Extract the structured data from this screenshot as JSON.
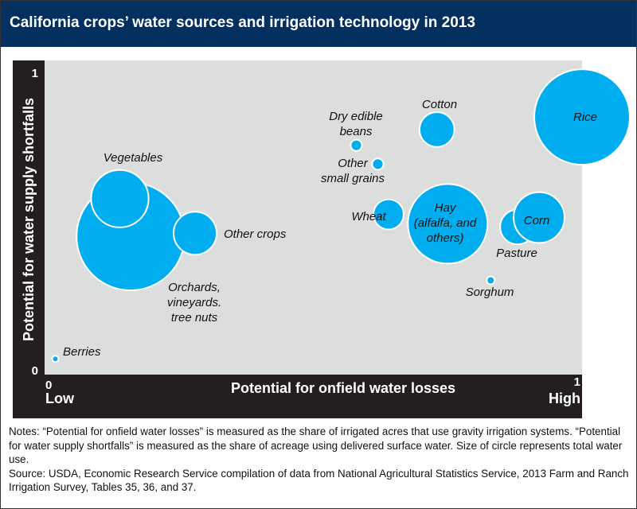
{
  "header": {
    "title": "California crops’ water sources and irrigation technology in 2013"
  },
  "chart_data": {
    "type": "scatter",
    "title": "California crops’ water sources and irrigation technology in 2013",
    "xlabel": "Potential for onfield water losses",
    "ylabel": "Potential for water supply shortfalls",
    "xlim": [
      0,
      1
    ],
    "ylim": [
      0,
      1
    ],
    "x_ticks": [
      "0",
      "1"
    ],
    "y_ticks": [
      "0",
      "1"
    ],
    "x_low_label": "Low",
    "x_high_label": "High",
    "grid": false,
    "bubble_color": "#00aeef",
    "background_color": "#dcdddd",
    "size_note": "Size of circle represents total water use (relative)",
    "points": [
      {
        "name": "Orchards, vineyards. tree nuts",
        "label_lines": [
          "Orchards,",
          "vineyards.",
          "tree nuts"
        ],
        "x": 0.16,
        "y": 0.44,
        "size": 46
      },
      {
        "name": "Vegetables",
        "label_lines": [
          "Vegetables"
        ],
        "x": 0.14,
        "y": 0.56,
        "size": 13
      },
      {
        "name": "Other crops",
        "label_lines": [
          "Other crops"
        ],
        "x": 0.28,
        "y": 0.45,
        "size": 7.3
      },
      {
        "name": "Berries",
        "label_lines": [
          "Berries"
        ],
        "x": 0.02,
        "y": 0.05,
        "size": 0.16
      },
      {
        "name": "Dry edible beans",
        "label_lines": [
          "Dry edible",
          "beans"
        ],
        "x": 0.58,
        "y": 0.73,
        "size": 0.5
      },
      {
        "name": "Other small grains",
        "label_lines": [
          "Other",
          "small grains"
        ],
        "x": 0.62,
        "y": 0.67,
        "size": 0.5
      },
      {
        "name": "Cotton",
        "label_lines": [
          "Cotton"
        ],
        "x": 0.73,
        "y": 0.78,
        "size": 4.8
      },
      {
        "name": "Wheat",
        "label_lines": [
          "Wheat"
        ],
        "x": 0.64,
        "y": 0.51,
        "size": 3.6
      },
      {
        "name": "Hay (alfalfa, and others)",
        "label_lines": [
          "Hay",
          "(alfalfa, and",
          "others)"
        ],
        "x": 0.75,
        "y": 0.48,
        "size": 25
      },
      {
        "name": "Pasture",
        "label_lines": [
          "Pasture"
        ],
        "x": 0.88,
        "y": 0.47,
        "size": 4.8
      },
      {
        "name": "Corn",
        "label_lines": [
          "Corn"
        ],
        "x": 0.92,
        "y": 0.5,
        "size": 10.2
      },
      {
        "name": "Sorghum",
        "label_lines": [
          "Sorghum"
        ],
        "x": 0.83,
        "y": 0.3,
        "size": 0.25
      },
      {
        "name": "Rice",
        "label_lines": [
          "Rice"
        ],
        "x": 1.0,
        "y": 0.82,
        "size": 36
      }
    ]
  },
  "notes": {
    "line1": "Notes: “Potential for onfield water losses” is measured as the share of irrigated acres that use gravity irrigation systems. “Potential for water supply shortfalls” is measured as the share of acreage using delivered surface water. Size of circle represents total water use.",
    "line2": "Source: USDA, Economic Research Service compilation of data from National Agricultural Statistics Service, 2013 Farm and Ranch Irrigation Survey, Tables 35, 36, and 37."
  }
}
